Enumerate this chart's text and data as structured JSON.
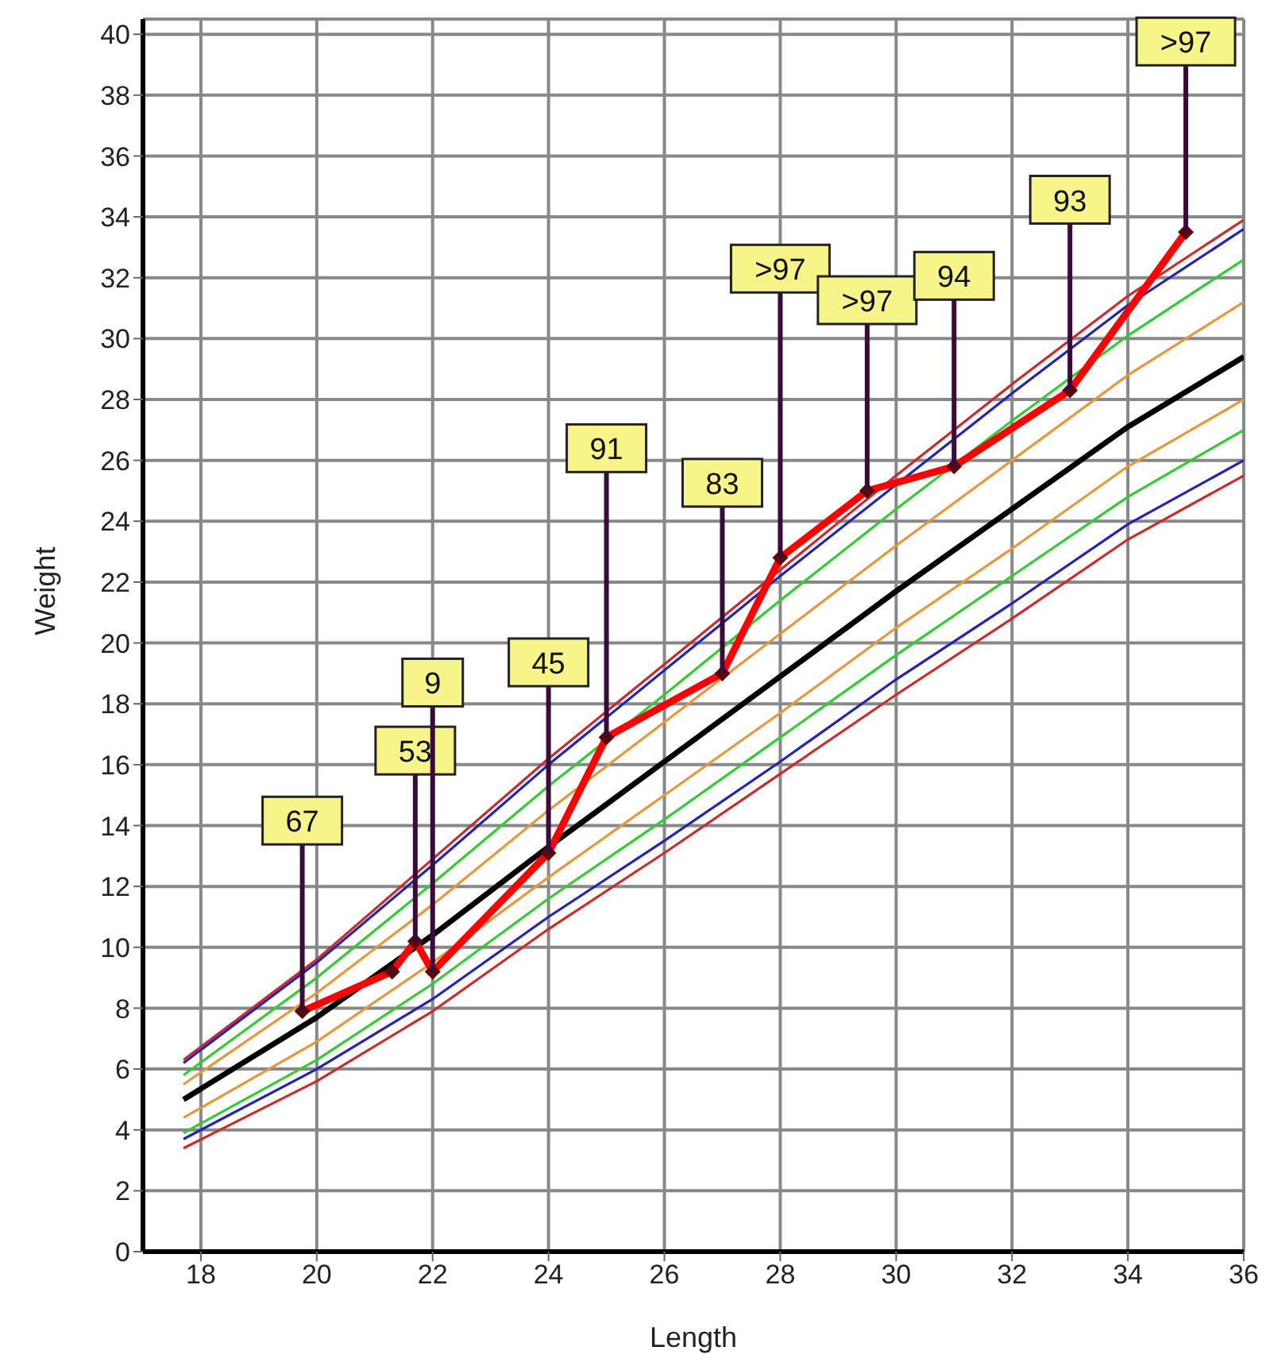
{
  "chart_data": {
    "type": "line",
    "xlabel": "Length",
    "ylabel": "Weight",
    "xlim": [
      17,
      36
    ],
    "xticks": [
      18,
      20,
      22,
      24,
      26,
      28,
      30,
      32,
      34,
      36
    ],
    "ylim": [
      0,
      40.5
    ],
    "yticks": [
      0,
      2,
      4,
      6,
      8,
      10,
      12,
      14,
      16,
      18,
      20,
      22,
      24,
      26,
      28,
      30,
      32,
      34,
      36,
      38,
      40
    ],
    "grid": true,
    "legend": false,
    "line_style": "solid",
    "x": [
      17.7,
      20,
      22,
      24,
      26,
      28,
      30,
      32,
      34,
      36
    ],
    "series": [
      {
        "color": "#cc2b2b",
        "values": [
          6.3,
          9.6,
          12.9,
          16.2,
          19.3,
          22.4,
          25.5,
          28.5,
          31.4,
          33.9
        ]
      },
      {
        "color": "#2323b4",
        "values": [
          6.2,
          9.5,
          12.7,
          16.0,
          19.1,
          22.2,
          25.2,
          28.2,
          31.1,
          33.6
        ]
      },
      {
        "color": "#33cc33",
        "values": [
          5.8,
          9.0,
          12.1,
          15.3,
          18.3,
          21.4,
          24.4,
          27.3,
          30.1,
          32.6
        ]
      },
      {
        "color": "#e8983a",
        "values": [
          5.5,
          8.5,
          11.4,
          14.5,
          17.4,
          20.3,
          23.2,
          26.0,
          28.8,
          31.2
        ]
      },
      {
        "color": "#000000",
        "values": [
          5.0,
          7.7,
          10.4,
          13.3,
          16.1,
          18.9,
          21.7,
          24.4,
          27.1,
          29.4
        ]
      },
      {
        "color": "#e8983a",
        "values": [
          4.4,
          6.9,
          9.5,
          12.3,
          15.0,
          17.7,
          20.5,
          23.1,
          25.8,
          28.0
        ]
      },
      {
        "color": "#33cc33",
        "values": [
          3.9,
          6.3,
          8.8,
          11.6,
          14.2,
          16.9,
          19.6,
          22.2,
          24.8,
          27.0
        ]
      },
      {
        "color": "#2323b4",
        "values": [
          3.7,
          6.0,
          8.3,
          11.0,
          13.5,
          16.1,
          18.8,
          21.3,
          23.9,
          26.0
        ]
      },
      {
        "color": "#cc2b2b",
        "values": [
          3.4,
          5.6,
          7.9,
          10.6,
          13.1,
          15.7,
          18.3,
          20.8,
          23.4,
          25.5
        ]
      },
      {
        "color": "#ff0000",
        "marker": "diamond",
        "x": [
          19.75,
          21.3,
          21.7,
          22.0,
          24.0,
          25.0,
          27.0,
          28.0,
          29.5,
          31.0,
          33.0,
          35.0
        ],
        "values": [
          7.9,
          9.2,
          10.2,
          9.2,
          13.1,
          16.9,
          19.0,
          22.8,
          25.0,
          25.8,
          28.3,
          33.5
        ]
      }
    ],
    "annotations": [
      {
        "text": "67",
        "x": 19.75,
        "y": 7.9
      },
      {
        "text": "53",
        "x": 21.7,
        "y": 10.2
      },
      {
        "text": "9",
        "x": 22.0,
        "y": 9.2
      },
      {
        "text": "45",
        "x": 24.0,
        "y": 13.1
      },
      {
        "text": "91",
        "x": 25.0,
        "y": 16.9
      },
      {
        "text": "83",
        "x": 27.0,
        "y": 19.0
      },
      {
        "text": ">97",
        "x": 28.0,
        "y": 22.8
      },
      {
        "text": ">97",
        "x": 29.5,
        "y": 25.0
      },
      {
        "text": "94",
        "x": 31.0,
        "y": 25.8
      },
      {
        "text": "93",
        "x": 33.0,
        "y": 28.3
      },
      {
        "text": ">97",
        "x": 35.0,
        "y": 33.5
      }
    ]
  }
}
